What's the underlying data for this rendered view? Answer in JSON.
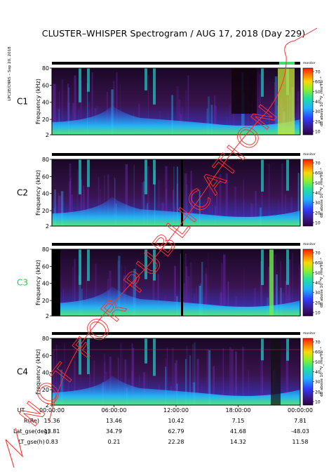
{
  "title": "CLUSTER–WHISPER Spectrogram / AUG 17, 2018 (Day 229)",
  "side_credit": "LPC2E/CNRS – Sep 20, 2018",
  "watermark": "NOT FOR PUBLICATION",
  "colors": {
    "background": "#ffffff",
    "c3_label": "#2ecc40",
    "frame": "#000000"
  },
  "chart_data": [
    {
      "type": "heatmap",
      "panel": "C1",
      "ylabel": "Frequency (kHz)",
      "yticks": [
        2,
        20,
        40,
        60,
        80
      ],
      "ylim": [
        2,
        80
      ],
      "colorbar": {
        "ticks": [
          10,
          20,
          30,
          40,
          50,
          60,
          70
        ],
        "label": "dB above 10⁻⁸V_rms²Hz⁻¹",
        "top_label": "monitor"
      }
    },
    {
      "type": "heatmap",
      "panel": "C2",
      "ylabel": "Frequency (kHz)",
      "yticks": [
        2,
        20,
        40,
        60,
        80
      ],
      "ylim": [
        2,
        80
      ],
      "colorbar": {
        "ticks": [
          10,
          20,
          30,
          40,
          50,
          60,
          70
        ],
        "label": "dB above 10⁻⁸V_rms²Hz⁻¹",
        "top_label": "monitor"
      }
    },
    {
      "type": "heatmap",
      "panel": "C3",
      "ylabel": "Frequency (kHz)",
      "yticks": [
        2,
        20,
        40,
        60,
        80
      ],
      "ylim": [
        2,
        80
      ],
      "colorbar": {
        "ticks": [
          10,
          20,
          30,
          40,
          50,
          60,
          70
        ],
        "label": "dB above 10⁻⁸V_rms²Hz⁻¹",
        "top_label": "monitor"
      }
    },
    {
      "type": "heatmap",
      "panel": "C4",
      "ylabel": "Frequency (kHz)",
      "yticks": [
        2,
        20,
        40,
        60,
        80
      ],
      "ylim": [
        2,
        80
      ],
      "colorbar": {
        "ticks": [
          10,
          20,
          30,
          40,
          50,
          60,
          70
        ],
        "label": "dB above 10⁻⁸V_rms²Hz⁻¹",
        "top_label": "monitor"
      }
    }
  ],
  "x_axis": {
    "rows": [
      {
        "label": "UT",
        "values": [
          "00:00:00",
          "06:00:00",
          "12:00:00",
          "18:00:00",
          "00:00:00"
        ]
      },
      {
        "label": "R(Re)",
        "values": [
          "15.36",
          "13.46",
          "10.42",
          "7.15",
          "7.81"
        ]
      },
      {
        "label": "Lat_gse(deg)",
        "values": [
          "13.81",
          "34.79",
          "62.79",
          "41.68",
          "-48.03"
        ]
      },
      {
        "label": "LT_gse(h)",
        "values": [
          "0.83",
          "0.21",
          "22.28",
          "14.32",
          "11.58"
        ]
      }
    ]
  }
}
